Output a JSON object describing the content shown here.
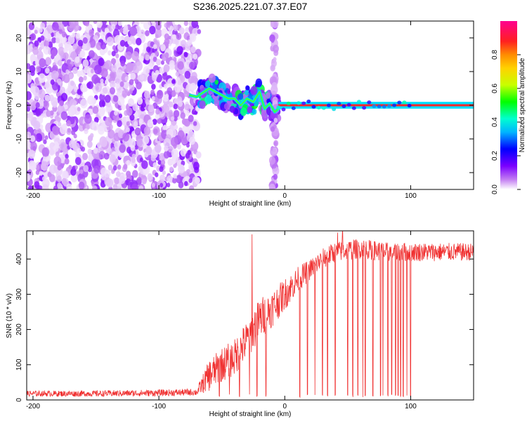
{
  "title": "S236.2025.221.07.37.E07",
  "chart_data": [
    {
      "type": "heatmap",
      "name": "spectrogram",
      "xlabel": "Height of straight line (km)",
      "ylabel": "Frequency (Hz)",
      "xlim": [
        -205,
        150
      ],
      "ylim": [
        -25,
        25
      ],
      "xticks": [
        -200,
        -100,
        0,
        100
      ],
      "yticks": [
        20,
        10,
        0,
        -10,
        -20
      ],
      "colorbar": {
        "label": "Normalized spectral amplitude",
        "range": [
          0,
          1
        ],
        "ticks": [
          "0.0",
          "0.2",
          "0.4",
          "0.6",
          "0.8"
        ],
        "colors": [
          "#ffffff",
          "#c27cf2",
          "#7a00ff",
          "#0000ff",
          "#00b4ff",
          "#00ffd0",
          "#00ff00",
          "#c8ff00",
          "#ffd200",
          "#ff8c00",
          "#ff2020",
          "#ff0090"
        ]
      },
      "regions": [
        {
          "desc": "noise",
          "x_range": [
            -205,
            -68
          ],
          "f_range": [
            -25,
            25
          ],
          "amplitude_range": [
            0.02,
            0.18
          ]
        },
        {
          "desc": "onset",
          "x_range": [
            -68,
            -5
          ],
          "f_range": [
            -6,
            6
          ],
          "amplitude_range": [
            0.1,
            0.55
          ]
        },
        {
          "desc": "vertical streak",
          "x_range": [
            -10,
            -7
          ],
          "f_range": [
            -25,
            25
          ],
          "amplitude_range": [
            0.05,
            0.15
          ]
        },
        {
          "desc": "tone",
          "x_range": [
            -5,
            150
          ],
          "f_range": [
            -0.8,
            0.8
          ],
          "amplitude_range": [
            0.85,
            1.0
          ]
        }
      ],
      "tone_track": {
        "x": [
          -76,
          -70,
          -64,
          -60,
          -55,
          -50,
          -45,
          -40,
          -35,
          -30,
          -25,
          -20,
          -16,
          -12,
          -8,
          -5,
          0,
          150
        ],
        "f": [
          3,
          2.5,
          4,
          5,
          4,
          3,
          2,
          2,
          0,
          2,
          1,
          4,
          -1,
          0.5,
          -2,
          -1,
          0,
          0
        ]
      }
    },
    {
      "type": "line",
      "name": "snr",
      "xlabel": "Height of straight line (km)",
      "ylabel": "SNR (10 * v/v)",
      "xlim": [
        -205,
        150
      ],
      "ylim": [
        0,
        480
      ],
      "xticks": [
        -200,
        -100,
        0,
        100
      ],
      "yticks": [
        0,
        100,
        200,
        300,
        400
      ],
      "color": "#f03232",
      "envelope": {
        "x": [
          -205,
          -150,
          -100,
          -70,
          -60,
          -50,
          -40,
          -30,
          -20,
          -10,
          0,
          10,
          20,
          30,
          40,
          60,
          80,
          100,
          120,
          150
        ],
        "y": [
          18,
          18,
          20,
          22,
          70,
          100,
          120,
          170,
          230,
          260,
          300,
          340,
          370,
          400,
          420,
          430,
          420,
          420,
          420,
          420
        ]
      },
      "noise_amplitude": {
        "x": [
          -205,
          -70,
          -60,
          -20,
          20,
          150
        ],
        "y": [
          8,
          10,
          45,
          60,
          30,
          25
        ]
      },
      "dropouts_x": [
        -52,
        -44,
        -36,
        -28,
        -22,
        -15,
        12,
        18,
        24,
        30,
        34,
        40,
        46,
        50,
        54,
        58,
        62,
        64,
        70,
        76,
        78,
        82,
        85,
        88,
        90,
        92,
        94,
        97,
        100
      ],
      "spikes": [
        {
          "x": -26,
          "y": 470
        },
        {
          "x": 42,
          "y": 475
        },
        {
          "x": 46,
          "y": 478
        }
      ]
    }
  ]
}
